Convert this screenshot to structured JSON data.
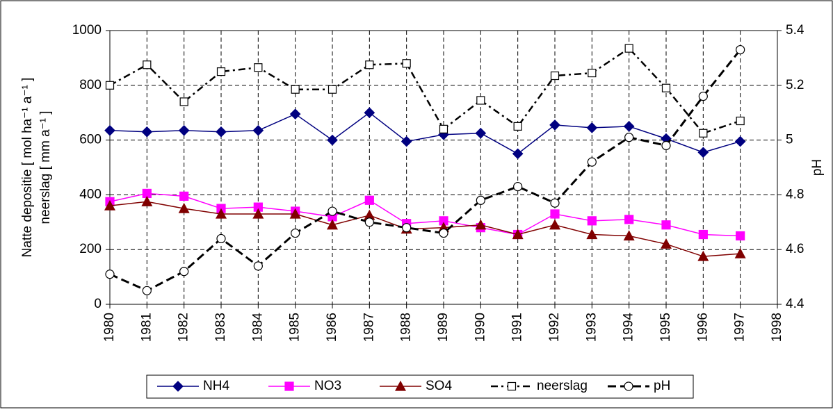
{
  "chart_data": {
    "type": "line",
    "x": [
      1980,
      1981,
      1982,
      1983,
      1984,
      1985,
      1986,
      1987,
      1988,
      1989,
      1990,
      1991,
      1992,
      1993,
      1994,
      1995,
      1996,
      1997
    ],
    "xlim": [
      1980,
      1998
    ],
    "xticks": [
      1980,
      1981,
      1982,
      1983,
      1984,
      1985,
      1986,
      1987,
      1988,
      1989,
      1990,
      1991,
      1992,
      1993,
      1994,
      1995,
      1996,
      1997,
      1998
    ],
    "ylim": [
      0,
      1000
    ],
    "yticks": [
      0,
      200,
      400,
      600,
      800,
      1000
    ],
    "y2lim": [
      4.4,
      5.4
    ],
    "y2ticks": [
      4.4,
      4.6,
      4.8,
      5,
      5.2,
      5.4
    ],
    "ylabel": [
      "Natte depositie [ mol ha⁻¹ a⁻¹ ]",
      "neerslag [ mm a⁻¹ ]"
    ],
    "y2label": "pH",
    "grid": true,
    "legend": "bottom",
    "series": [
      {
        "name": "NH4",
        "color": "#000080",
        "marker": "diamond",
        "line": "solid",
        "values": [
          635,
          630,
          635,
          630,
          635,
          695,
          600,
          700,
          595,
          620,
          625,
          550,
          655,
          645,
          650,
          605,
          555,
          595
        ]
      },
      {
        "name": "NO3",
        "color": "#ff00ff",
        "marker": "square",
        "line": "solid",
        "values": [
          375,
          405,
          395,
          350,
          355,
          340,
          320,
          380,
          295,
          305,
          280,
          255,
          330,
          305,
          310,
          290,
          255,
          250
        ]
      },
      {
        "name": "SO4",
        "color": "#800000",
        "marker": "triangle",
        "line": "solid",
        "values": [
          360,
          375,
          350,
          330,
          330,
          330,
          290,
          325,
          275,
          280,
          290,
          255,
          290,
          255,
          250,
          220,
          175,
          185
        ]
      },
      {
        "name": "neerslag",
        "color": "#000000",
        "marker": "open-square",
        "line": "dashdot",
        "values": [
          800,
          875,
          740,
          850,
          865,
          785,
          785,
          875,
          880,
          640,
          745,
          650,
          835,
          845,
          935,
          790,
          625,
          670
        ]
      },
      {
        "name": "pH",
        "color": "#000000",
        "marker": "open-circle",
        "line": "dashed",
        "axis": "y2",
        "values": [
          4.51,
          4.45,
          4.52,
          4.64,
          4.54,
          4.66,
          4.74,
          4.7,
          4.68,
          4.66,
          4.78,
          4.83,
          4.77,
          4.92,
          5.01,
          4.98,
          5.16,
          5.33
        ]
      }
    ]
  }
}
